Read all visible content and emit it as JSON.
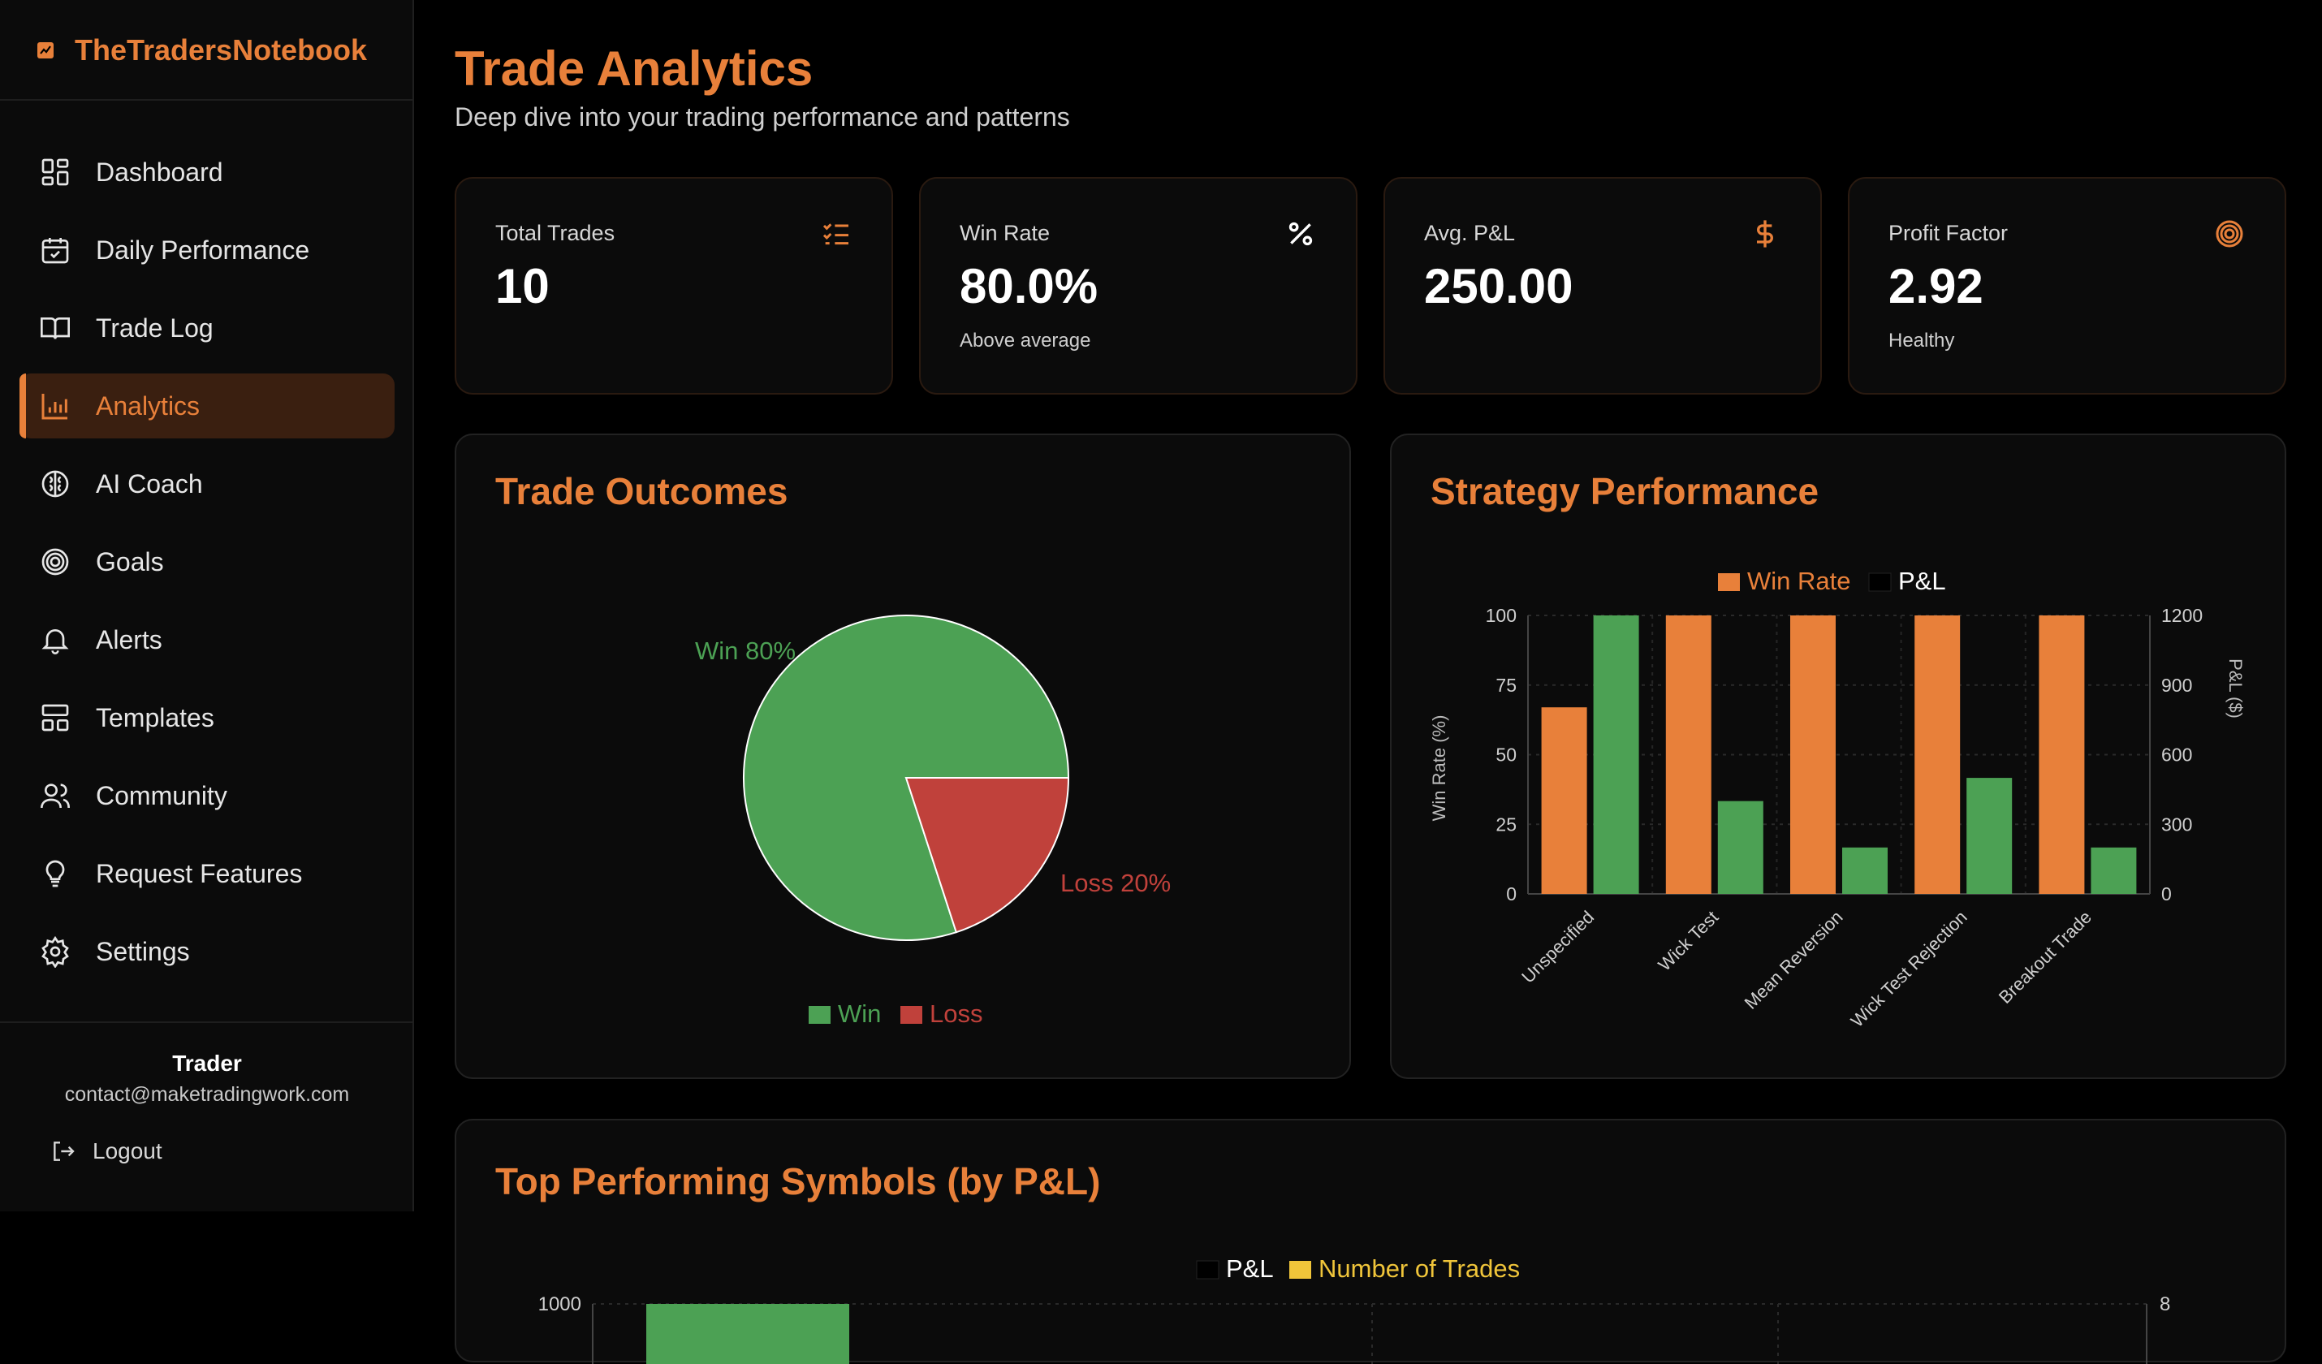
{
  "brand": {
    "name": "TheTradersNotebook"
  },
  "nav": [
    {
      "label": "Dashboard",
      "icon": "dashboard-icon",
      "active": false
    },
    {
      "label": "Daily Performance",
      "icon": "calendar-icon",
      "active": false
    },
    {
      "label": "Trade Log",
      "icon": "book-icon",
      "active": false
    },
    {
      "label": "Analytics",
      "icon": "bar-chart-icon",
      "active": true
    },
    {
      "label": "AI Coach",
      "icon": "brain-icon",
      "active": false
    },
    {
      "label": "Goals",
      "icon": "target-icon",
      "active": false
    },
    {
      "label": "Alerts",
      "icon": "bell-icon",
      "active": false
    },
    {
      "label": "Templates",
      "icon": "layout-icon",
      "active": false
    },
    {
      "label": "Community",
      "icon": "users-icon",
      "active": false
    },
    {
      "label": "Request Features",
      "icon": "lightbulb-icon",
      "active": false
    },
    {
      "label": "Settings",
      "icon": "gear-icon",
      "active": false
    }
  ],
  "user": {
    "name": "Trader",
    "email": "contact@maketradingwork.com",
    "logout_label": "Logout"
  },
  "header": {
    "title": "Trade Analytics",
    "subtitle": "Deep dive into your trading performance and patterns"
  },
  "stats": [
    {
      "label": "Total Trades",
      "value": "10",
      "sub": "",
      "icon": "list-check-icon"
    },
    {
      "label": "Win Rate",
      "value": "80.0%",
      "sub": "Above average",
      "icon": "percent-icon"
    },
    {
      "label": "Avg. P&L",
      "value": "250.00",
      "sub": "",
      "icon": "dollar-icon"
    },
    {
      "label": "Profit Factor",
      "value": "2.92",
      "sub": "Healthy",
      "icon": "target-icon"
    }
  ],
  "colors": {
    "accent": "#e8803a",
    "win": "#4ca154",
    "loss": "#c0413b",
    "trades": "#f0c53a"
  },
  "chart_data": [
    {
      "type": "pie",
      "title": "Trade Outcomes",
      "labels": [
        "Win",
        "Loss"
      ],
      "values": [
        80,
        20
      ],
      "slice_labels": [
        "Win 80%",
        "Loss 20%"
      ],
      "legend": [
        "Win",
        "Loss"
      ]
    },
    {
      "type": "bar",
      "title": "Strategy Performance",
      "categories": [
        "Unspecified",
        "Wick Test",
        "Mean Reversion",
        "Wick Test Rejection",
        "Breakout Trade"
      ],
      "series": [
        {
          "name": "Win Rate",
          "axis": "left",
          "values": [
            67,
            100,
            100,
            100,
            100
          ]
        },
        {
          "name": "P&L",
          "axis": "right",
          "values": [
            1200,
            400,
            200,
            500,
            200
          ]
        }
      ],
      "ylabel": "Win Rate (%)",
      "y2label": "P&L ($)",
      "ylim": [
        0,
        100
      ],
      "y2lim": [
        0,
        1200
      ],
      "yticks": [
        "100",
        "75",
        "50",
        "25",
        "0"
      ],
      "y2ticks": [
        "1200",
        "900",
        "600",
        "300",
        "0"
      ],
      "legend": [
        "Win Rate",
        "P&L"
      ]
    },
    {
      "type": "bar",
      "title": "Top Performing Symbols (by P&L)",
      "legend": [
        "P&L",
        "Number of Trades"
      ],
      "ytick_top": "1000",
      "y2tick_top": "8",
      "values": [
        1000
      ]
    }
  ]
}
